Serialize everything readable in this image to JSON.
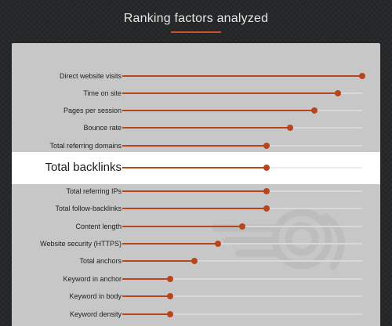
{
  "header": {
    "title": "Ranking factors analyzed"
  },
  "colors": {
    "accent": "#b8461c",
    "track": "#d9d9d9",
    "panel": "#c7c7c7",
    "background": "#262829"
  },
  "chart_data": {
    "type": "bar",
    "orientation": "horizontal",
    "title": "Ranking factors analyzed",
    "xlabel": "",
    "ylabel": "",
    "xlim": [
      0,
      1
    ],
    "grid": false,
    "highlighted_category": "Total backlinks",
    "categories": [
      "Direct website visits",
      "Time on site",
      "Pages per session",
      "Bounce rate",
      "Total referring domains",
      "Total backlinks",
      "Total referring IPs",
      "Total follow-backlinks",
      "Content length",
      "Website security (HTTPS)",
      "Total anchors",
      "Keyword in anchor",
      "Keyword in body",
      "Keyword density"
    ],
    "values": [
      1.0,
      0.9,
      0.8,
      0.7,
      0.6,
      0.6,
      0.6,
      0.6,
      0.5,
      0.4,
      0.3,
      0.2,
      0.2,
      0.2
    ]
  }
}
